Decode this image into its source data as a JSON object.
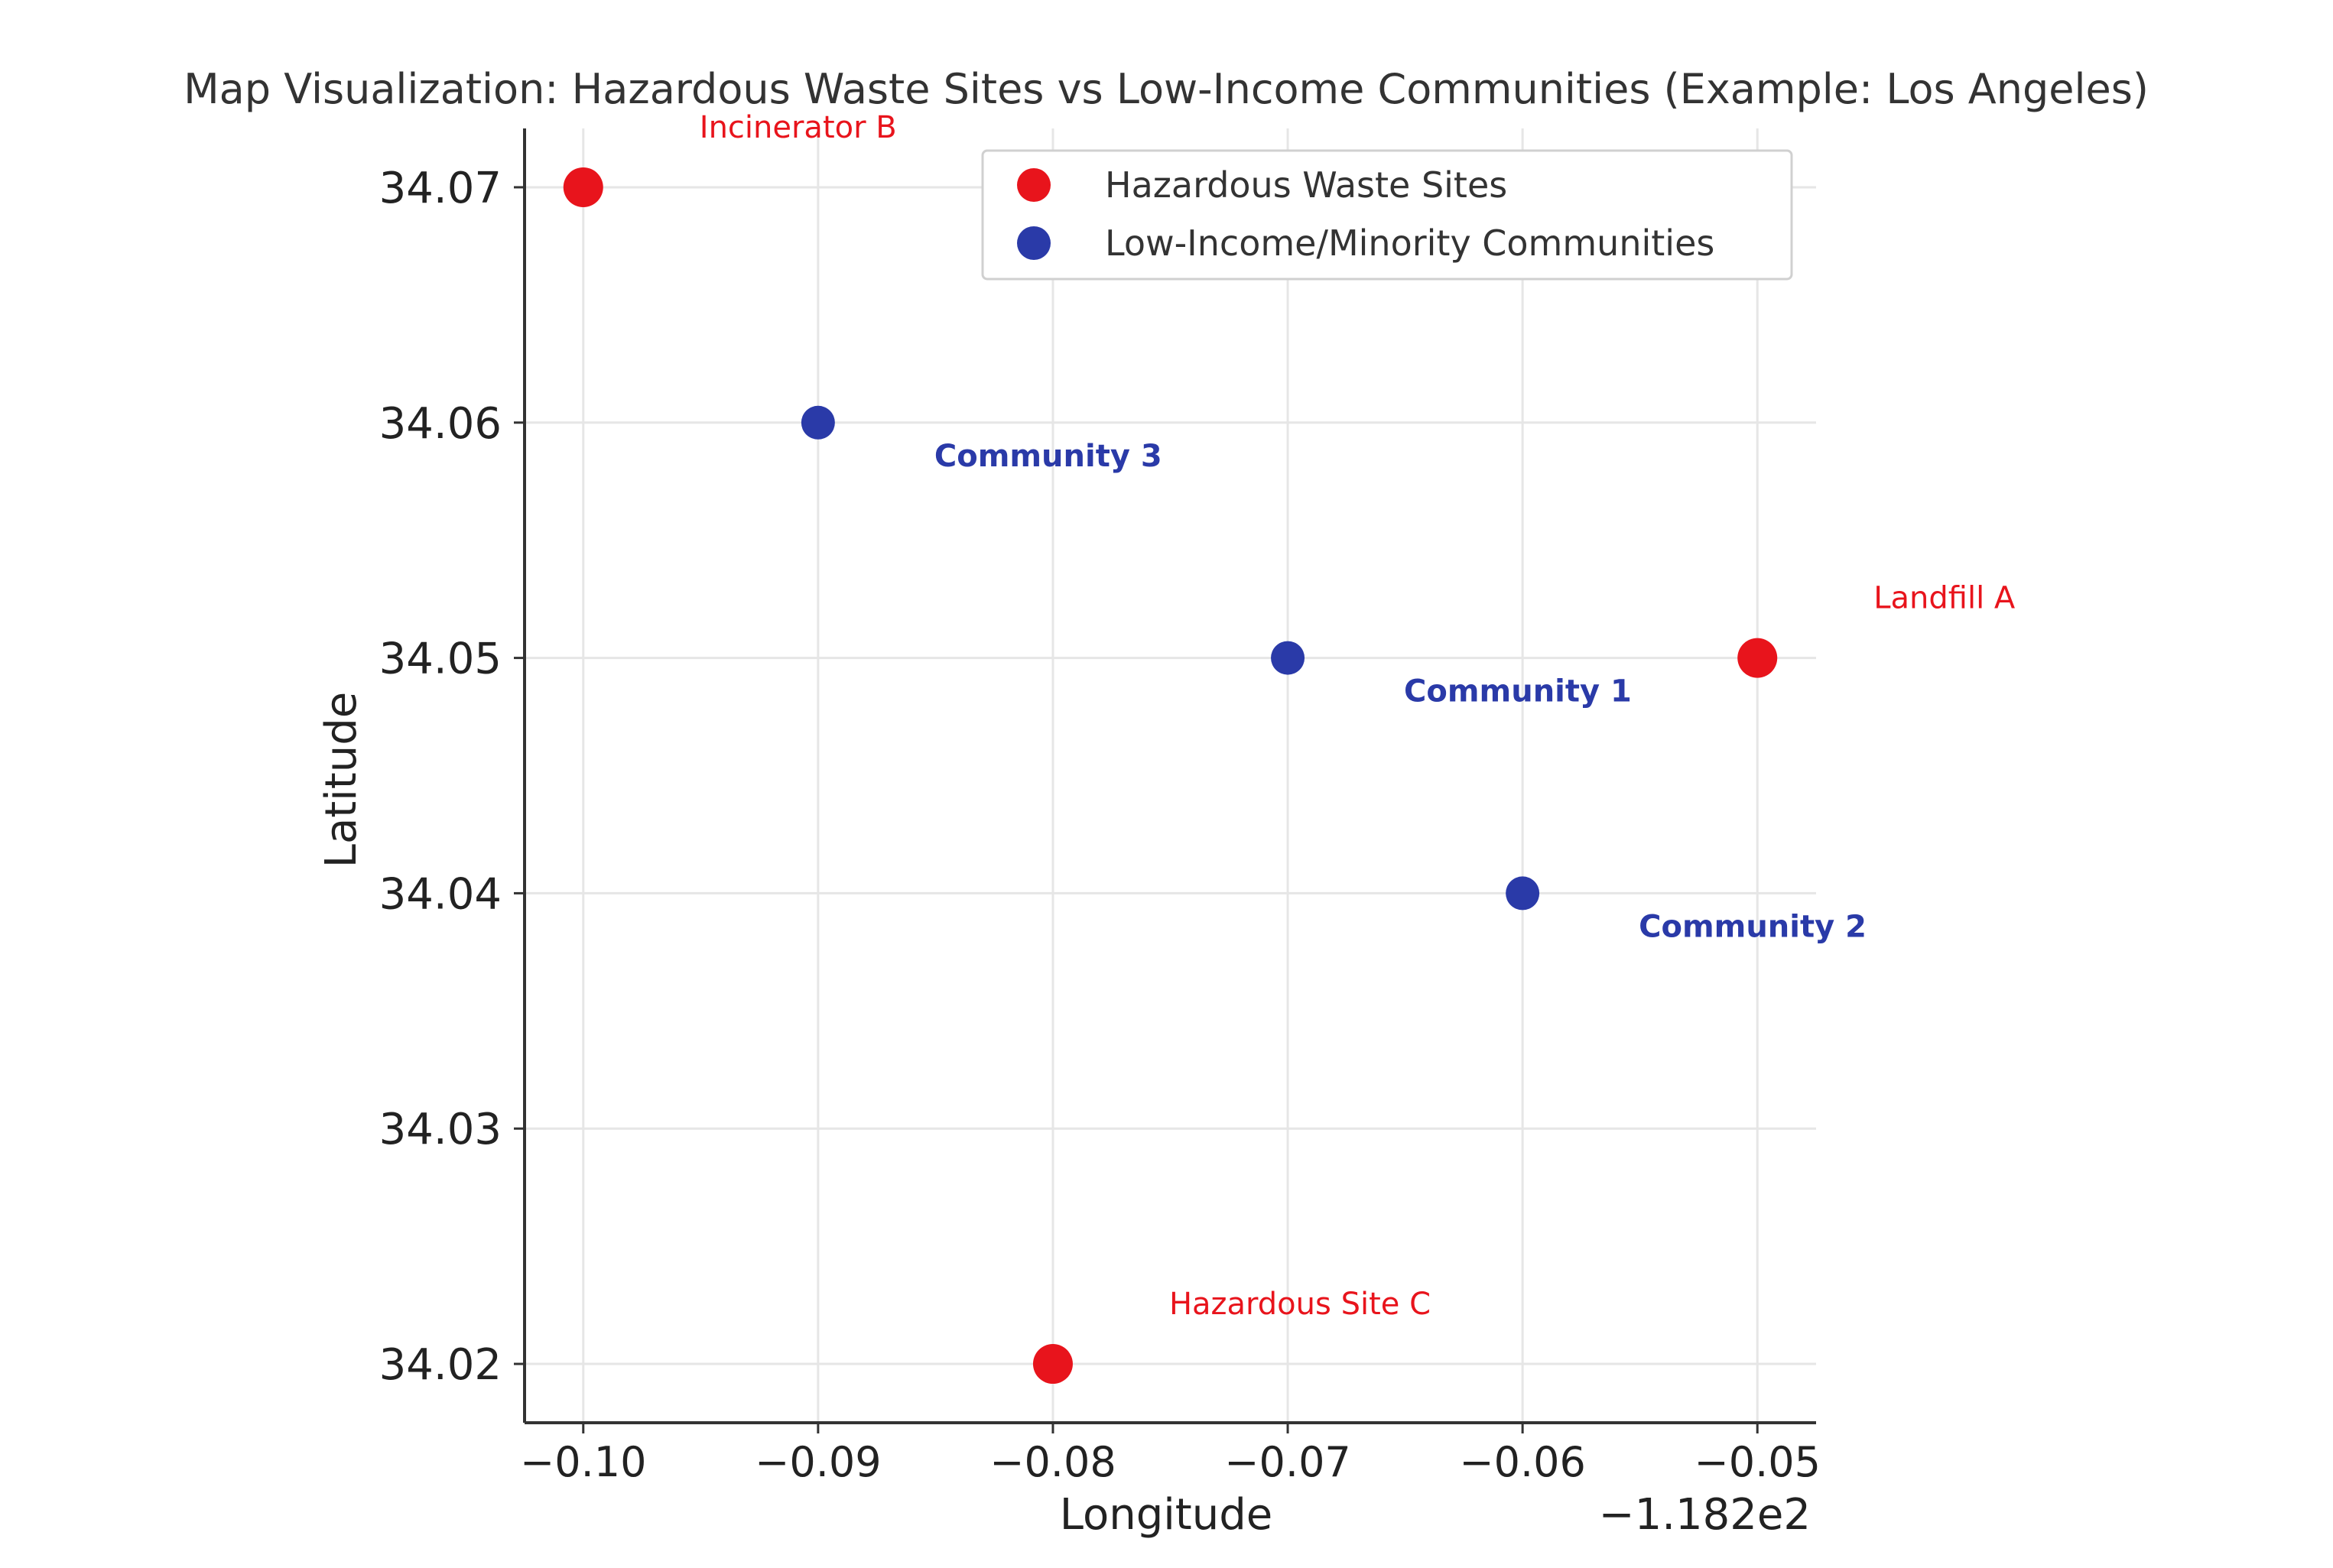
{
  "chart_data": {
    "type": "scatter",
    "title": "Map Visualization: Hazardous Waste Sites vs Low-Income Communities (Example: Los Angeles)",
    "xlabel": "Longitude",
    "ylabel": "Latitude",
    "x_offset_label": "−1.182e2",
    "xlim": [
      -0.1025,
      -0.0475
    ],
    "ylim": [
      34.0175,
      34.0725
    ],
    "xticks": [
      -0.1,
      -0.09,
      -0.08,
      -0.07,
      -0.06,
      -0.05
    ],
    "xtick_labels": [
      "−0.10",
      "−0.09",
      "−0.08",
      "−0.07",
      "−0.06",
      "−0.05"
    ],
    "yticks": [
      34.02,
      34.03,
      34.04,
      34.05,
      34.06,
      34.07
    ],
    "ytick_labels": [
      "34.02",
      "34.03",
      "34.04",
      "34.05",
      "34.06",
      "34.07"
    ],
    "grid": true,
    "legend_position": "top-right",
    "series": [
      {
        "name": "Hazardous Waste Sites",
        "color": "#e8141c",
        "label_color": "#e8141c",
        "points": [
          {
            "x": -0.05,
            "y": 34.05,
            "label": "Landfill A"
          },
          {
            "x": -0.1,
            "y": 34.07,
            "label": "Incinerator B"
          },
          {
            "x": -0.08,
            "y": 34.02,
            "label": "Hazardous Site C"
          }
        ]
      },
      {
        "name": "Low-Income/Minority Communities",
        "color": "#2a3aa8",
        "label_color": "#2a3aa8",
        "points": [
          {
            "x": -0.07,
            "y": 34.05,
            "label": "Community 1"
          },
          {
            "x": -0.06,
            "y": 34.04,
            "label": "Community 2"
          },
          {
            "x": -0.09,
            "y": 34.06,
            "label": "Community 3"
          }
        ]
      }
    ]
  }
}
